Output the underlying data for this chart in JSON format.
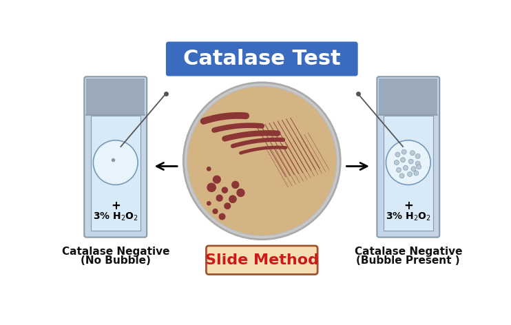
{
  "title": "Catalase Test",
  "title_bg": "#3a6bbf",
  "title_color": "white",
  "title_fontsize": 22,
  "left_label_line1": "Catalase Negative",
  "left_label_line2": "(No Bubble)",
  "right_label_line1": "Catalase Negative",
  "right_label_line2": "(Bubble Present )",
  "slide_method_text": "Slide Method",
  "slide_method_color": "#cc1a1a",
  "slide_method_bg": "#f5deb3",
  "slide_method_border": "#a0522d",
  "tube_fill": "#c5d5e8",
  "tube_border": "#8899aa",
  "tube_top_fill": "#9aaabb",
  "liquid_fill": "#d8eaf8",
  "bubble_fill": "#b8ccd8",
  "petri_fill": "#d4b483",
  "petri_border": "#aaaaaa",
  "petri_inner_border": "#bbbbbb",
  "bacteria_color": "#8b3535",
  "arrow_color": "black",
  "label_color": "#111111",
  "label_fontsize": 11,
  "h2o2_fontsize": 10,
  "background_color": "white",
  "loop_color": "#555555"
}
